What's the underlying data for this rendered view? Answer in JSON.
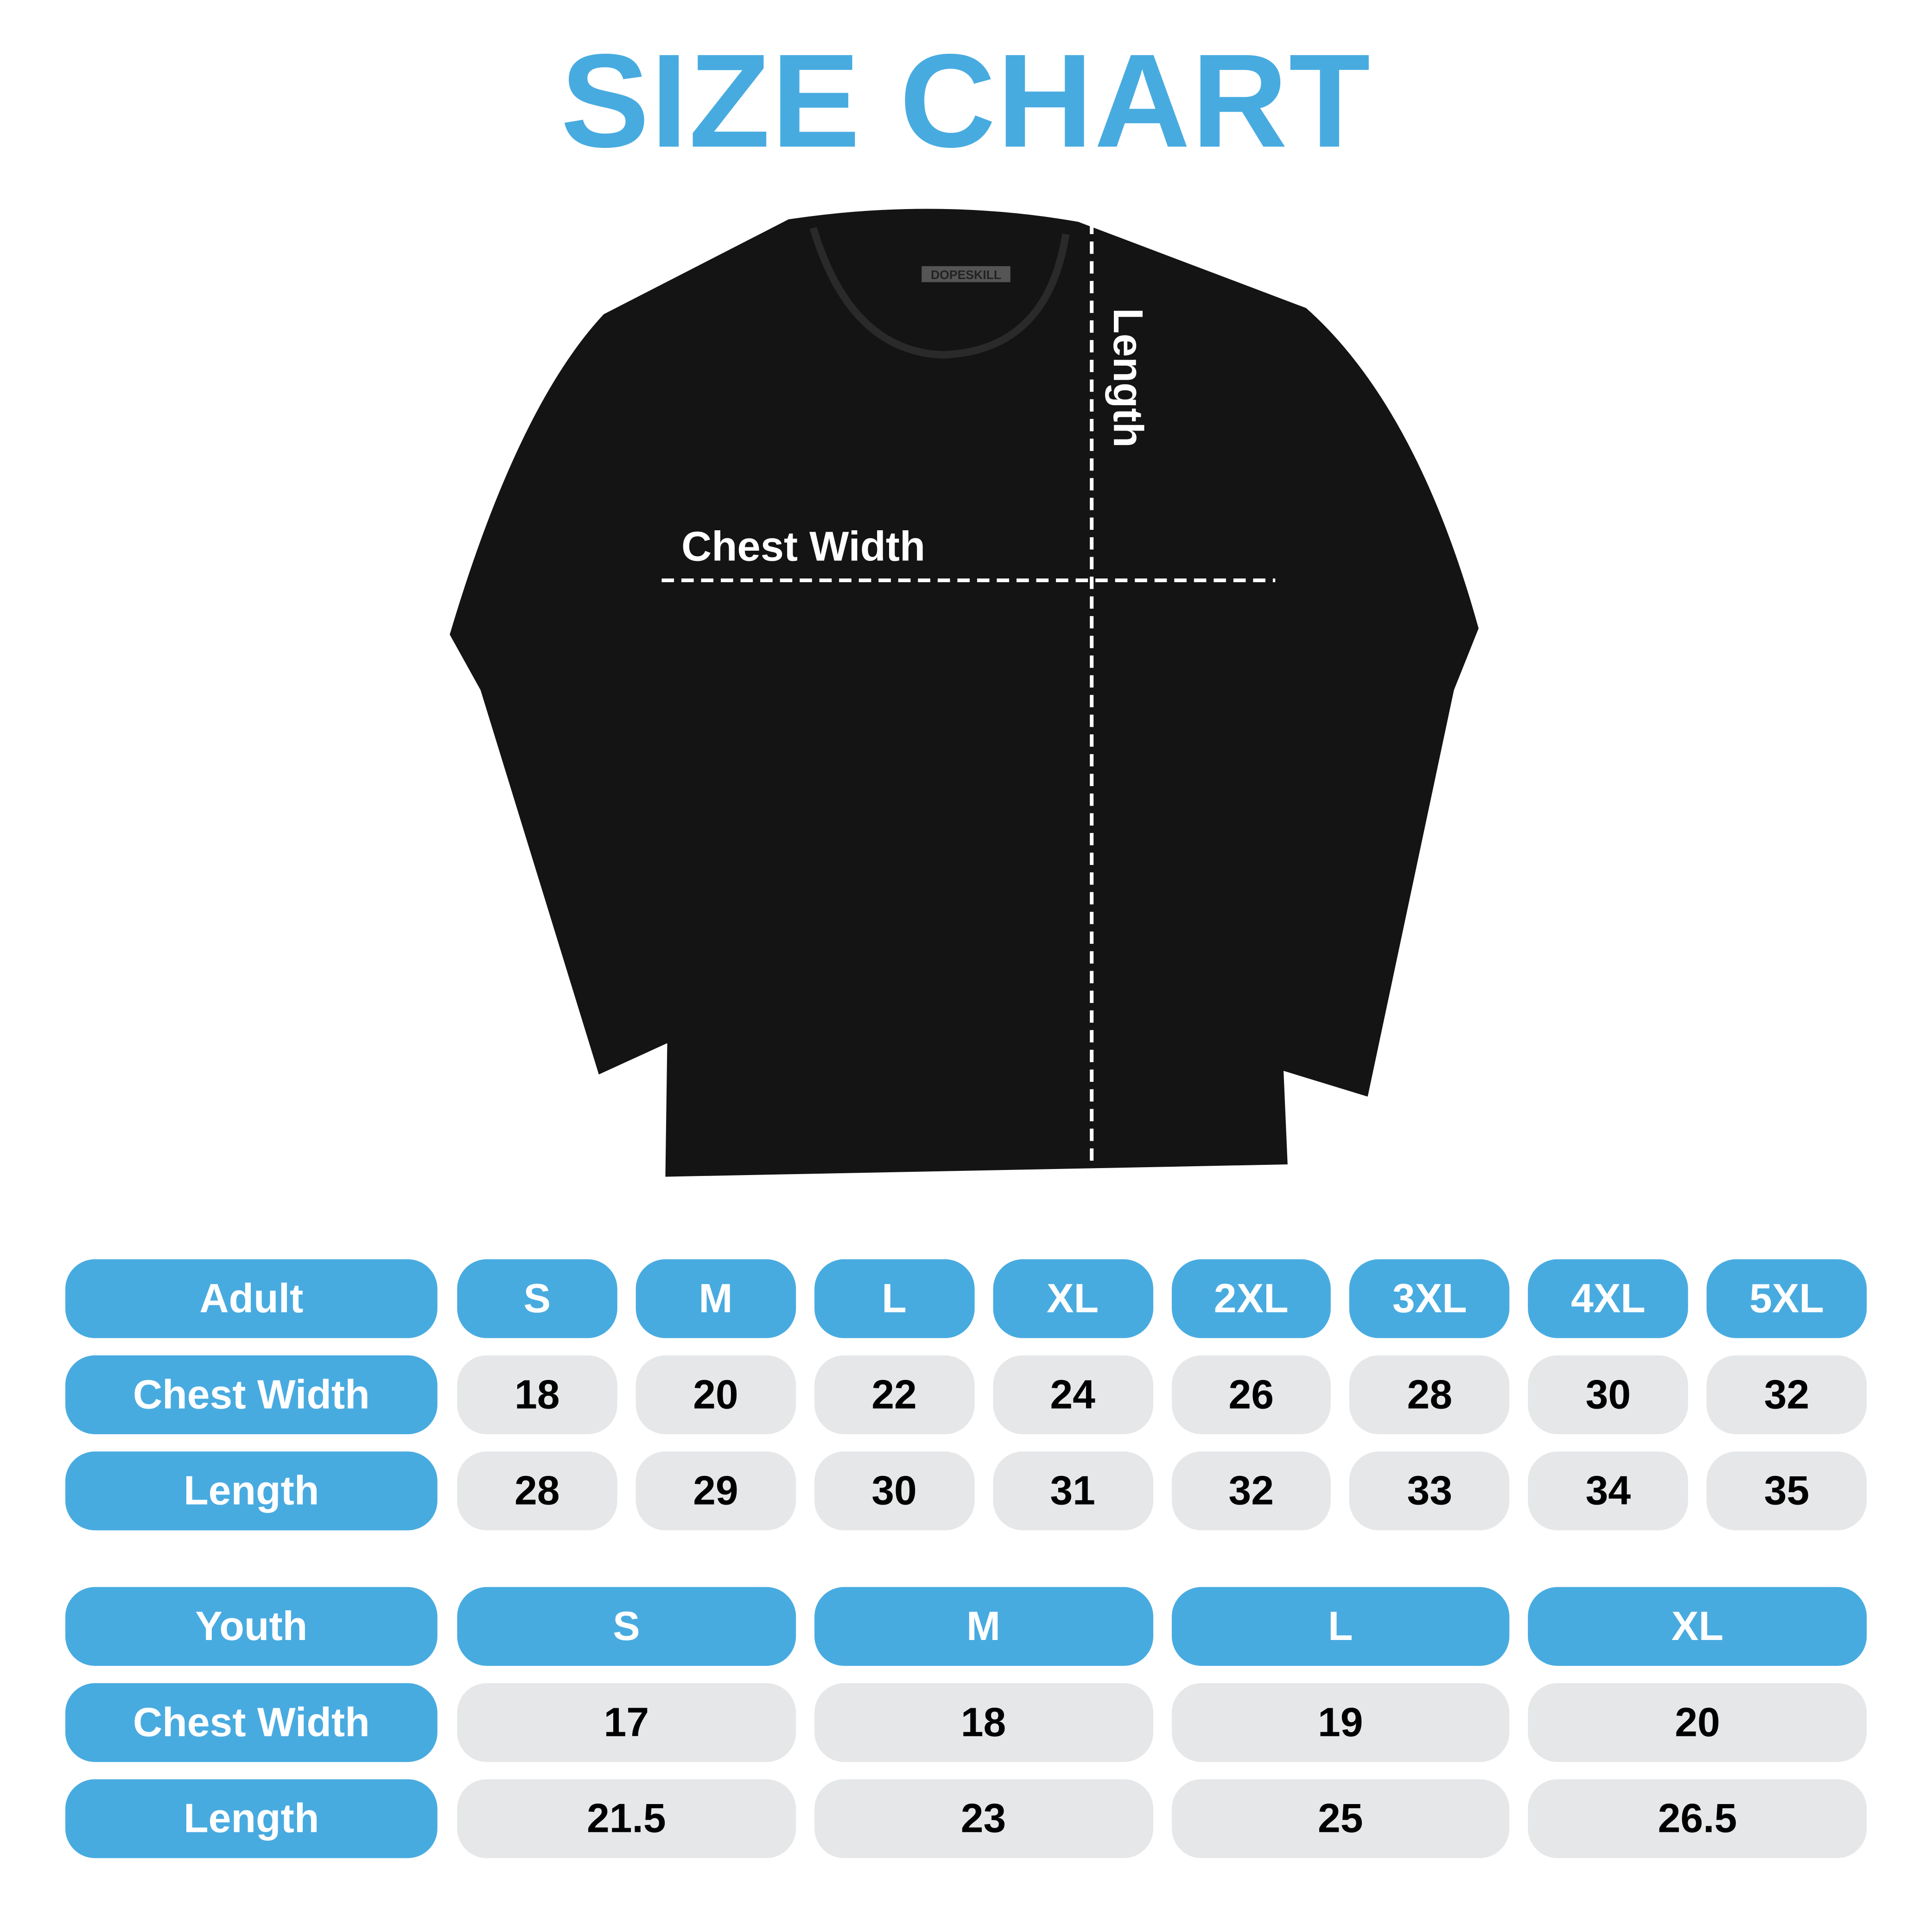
{
  "title": "SIZE CHART",
  "colors": {
    "accent": "#48abe0",
    "cell_bg": "#e6e7e8",
    "shirt": "#141414"
  },
  "shirt": {
    "brand_tag": "DOPESKILL",
    "chest_label": "Chest Width",
    "length_label": "Length"
  },
  "adult": {
    "header": "Adult",
    "sizes": [
      "S",
      "M",
      "L",
      "XL",
      "2XL",
      "3XL",
      "4XL",
      "5XL"
    ],
    "rows": [
      {
        "label": "Chest Width",
        "values": [
          "18",
          "20",
          "22",
          "24",
          "26",
          "28",
          "30",
          "32"
        ]
      },
      {
        "label": "Length",
        "values": [
          "28",
          "29",
          "30",
          "31",
          "32",
          "33",
          "34",
          "35"
        ]
      }
    ]
  },
  "youth": {
    "header": "Youth",
    "sizes": [
      "S",
      "M",
      "L",
      "XL"
    ],
    "rows": [
      {
        "label": "Chest Width",
        "values": [
          "17",
          "18",
          "19",
          "20"
        ]
      },
      {
        "label": "Length",
        "values": [
          "21.5",
          "23",
          "25",
          "26.5"
        ]
      }
    ]
  }
}
